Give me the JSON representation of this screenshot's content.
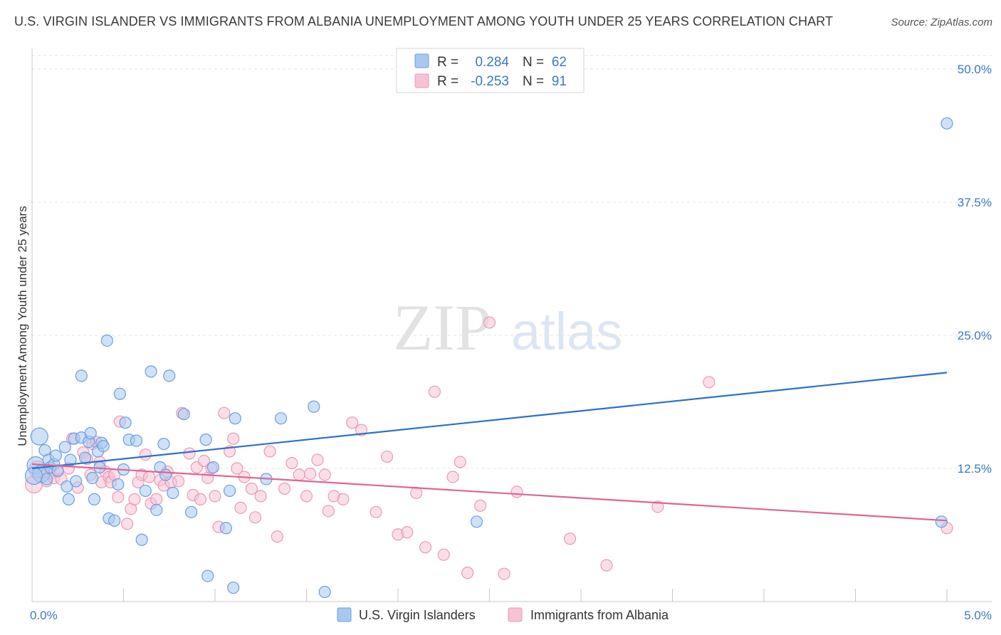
{
  "chart_data": {
    "type": "scatter",
    "title": "U.S. VIRGIN ISLANDER VS IMMIGRANTS FROM ALBANIA UNEMPLOYMENT AMONG YOUTH UNDER 25 YEARS CORRELATION CHART",
    "source": "Source: ZipAtlas.com",
    "watermark": {
      "zip": "ZIP",
      "atlas": "atlas"
    },
    "ylabel": "Unemployment Among Youth under 25 years",
    "xlim": [
      0,
      5.0
    ],
    "ylim": [
      0,
      50.0
    ],
    "x_tick_labels": [
      "0.0%",
      "5.0%"
    ],
    "y_ticks": [
      12.5,
      25.0,
      37.5,
      50.0
    ],
    "y_tick_labels": [
      "12.5%",
      "25.0%",
      "37.5%",
      "50.0%"
    ],
    "grid": "horizontal dashed",
    "legend": {
      "placement": "top-center",
      "rows": [
        {
          "r_label": "R =",
          "r_value": "0.284",
          "n_label": "N =",
          "n_value": "62"
        },
        {
          "r_label": "R =",
          "r_value": "-0.253",
          "n_label": "N =",
          "n_value": "91"
        }
      ]
    },
    "series": [
      {
        "name": "U.S. Virgin Islanders",
        "color": "#6a9fe0",
        "fill": "#a8c8f0",
        "line_color": "#2e6fcf",
        "trend": [
          [
            0.0,
            12.5
          ],
          [
            5.0,
            21.5
          ]
        ],
        "points": [
          [
            0.02,
            12.8
          ],
          [
            0.04,
            15.5
          ],
          [
            0.05,
            12.0
          ],
          [
            0.07,
            14.2
          ],
          [
            0.08,
            11.5
          ],
          [
            0.09,
            13.3
          ],
          [
            0.1,
            12.6
          ],
          [
            0.12,
            12.9
          ],
          [
            0.13,
            13.7
          ],
          [
            0.14,
            12.3
          ],
          [
            0.18,
            14.5
          ],
          [
            0.19,
            10.8
          ],
          [
            0.2,
            9.6
          ],
          [
            0.21,
            13.3
          ],
          [
            0.23,
            15.3
          ],
          [
            0.24,
            11.3
          ],
          [
            0.27,
            15.4
          ],
          [
            0.27,
            21.2
          ],
          [
            0.29,
            13.5
          ],
          [
            0.31,
            15.0
          ],
          [
            0.32,
            15.8
          ],
          [
            0.33,
            11.6
          ],
          [
            0.34,
            9.6
          ],
          [
            0.36,
            14.1
          ],
          [
            0.37,
            12.6
          ],
          [
            0.38,
            14.9
          ],
          [
            0.39,
            14.6
          ],
          [
            0.41,
            24.5
          ],
          [
            0.42,
            7.8
          ],
          [
            0.45,
            7.6
          ],
          [
            0.47,
            11.0
          ],
          [
            0.48,
            19.5
          ],
          [
            0.5,
            12.4
          ],
          [
            0.51,
            16.8
          ],
          [
            0.53,
            15.2
          ],
          [
            0.57,
            15.1
          ],
          [
            0.6,
            5.8
          ],
          [
            0.62,
            10.4
          ],
          [
            0.65,
            21.6
          ],
          [
            0.68,
            8.6
          ],
          [
            0.7,
            12.6
          ],
          [
            0.72,
            14.8
          ],
          [
            0.73,
            11.9
          ],
          [
            0.75,
            21.2
          ],
          [
            0.77,
            10.2
          ],
          [
            0.83,
            17.6
          ],
          [
            0.87,
            8.4
          ],
          [
            0.95,
            15.2
          ],
          [
            0.96,
            2.4
          ],
          [
            0.99,
            12.6
          ],
          [
            1.06,
            6.9
          ],
          [
            1.08,
            10.4
          ],
          [
            1.1,
            1.3
          ],
          [
            1.11,
            17.2
          ],
          [
            1.28,
            11.5
          ],
          [
            1.36,
            17.2
          ],
          [
            1.54,
            18.3
          ],
          [
            1.6,
            0.9
          ],
          [
            2.43,
            7.5
          ],
          [
            4.97,
            7.5
          ],
          [
            5.0,
            44.9
          ],
          [
            0.01,
            11.8
          ]
        ]
      },
      {
        "name": "Immigrants from Albania",
        "color": "#ea9ab6",
        "fill": "#f6c3d5",
        "line_color": "#e06496",
        "trend": [
          [
            0.0,
            12.9
          ],
          [
            5.0,
            7.6
          ]
        ],
        "points": [
          [
            0.01,
            11.0
          ],
          [
            0.03,
            12.4
          ],
          [
            0.06,
            12.1
          ],
          [
            0.08,
            11.3
          ],
          [
            0.1,
            12.0
          ],
          [
            0.12,
            11.6
          ],
          [
            0.14,
            12.2
          ],
          [
            0.16,
            11.5
          ],
          [
            0.2,
            12.5
          ],
          [
            0.22,
            15.3
          ],
          [
            0.25,
            10.7
          ],
          [
            0.28,
            14.0
          ],
          [
            0.3,
            13.4
          ],
          [
            0.32,
            11.9
          ],
          [
            0.33,
            14.8
          ],
          [
            0.35,
            15.0
          ],
          [
            0.37,
            13.1
          ],
          [
            0.38,
            11.2
          ],
          [
            0.4,
            12.2
          ],
          [
            0.42,
            11.7
          ],
          [
            0.43,
            11.2
          ],
          [
            0.45,
            11.9
          ],
          [
            0.47,
            9.8
          ],
          [
            0.48,
            16.9
          ],
          [
            0.52,
            7.3
          ],
          [
            0.54,
            8.7
          ],
          [
            0.56,
            9.6
          ],
          [
            0.58,
            11.2
          ],
          [
            0.6,
            11.9
          ],
          [
            0.62,
            13.8
          ],
          [
            0.64,
            11.7
          ],
          [
            0.65,
            9.2
          ],
          [
            0.68,
            9.6
          ],
          [
            0.7,
            11.4
          ],
          [
            0.72,
            10.9
          ],
          [
            0.74,
            12.2
          ],
          [
            0.76,
            11.2
          ],
          [
            0.8,
            11.3
          ],
          [
            0.82,
            17.7
          ],
          [
            0.86,
            13.9
          ],
          [
            0.88,
            10.0
          ],
          [
            0.9,
            12.6
          ],
          [
            0.92,
            9.6
          ],
          [
            0.94,
            13.2
          ],
          [
            0.96,
            11.6
          ],
          [
            0.98,
            12.5
          ],
          [
            1.0,
            9.9
          ],
          [
            1.02,
            7.0
          ],
          [
            1.05,
            17.7
          ],
          [
            1.08,
            14.1
          ],
          [
            1.1,
            15.3
          ],
          [
            1.12,
            12.5
          ],
          [
            1.14,
            8.8
          ],
          [
            1.16,
            11.7
          ],
          [
            1.2,
            10.6
          ],
          [
            1.22,
            7.9
          ],
          [
            1.25,
            9.9
          ],
          [
            1.3,
            14.1
          ],
          [
            1.34,
            6.1
          ],
          [
            1.38,
            10.6
          ],
          [
            1.42,
            13.0
          ],
          [
            1.46,
            11.9
          ],
          [
            1.5,
            9.9
          ],
          [
            1.52,
            12.0
          ],
          [
            1.56,
            13.3
          ],
          [
            1.6,
            11.9
          ],
          [
            1.62,
            8.5
          ],
          [
            1.65,
            9.9
          ],
          [
            1.7,
            9.6
          ],
          [
            1.75,
            16.8
          ],
          [
            1.8,
            16.1
          ],
          [
            1.88,
            8.4
          ],
          [
            1.94,
            13.6
          ],
          [
            2.0,
            6.3
          ],
          [
            2.05,
            6.5
          ],
          [
            2.1,
            10.2
          ],
          [
            2.15,
            5.1
          ],
          [
            2.2,
            19.7
          ],
          [
            2.25,
            4.4
          ],
          [
            2.3,
            11.7
          ],
          [
            2.34,
            13.1
          ],
          [
            2.38,
            2.7
          ],
          [
            2.45,
            9.0
          ],
          [
            2.5,
            26.2
          ],
          [
            2.58,
            2.6
          ],
          [
            2.65,
            10.3
          ],
          [
            2.94,
            5.9
          ],
          [
            3.14,
            3.4
          ],
          [
            3.42,
            8.9
          ],
          [
            3.7,
            20.6
          ],
          [
            5.0,
            6.9
          ]
        ]
      }
    ]
  }
}
